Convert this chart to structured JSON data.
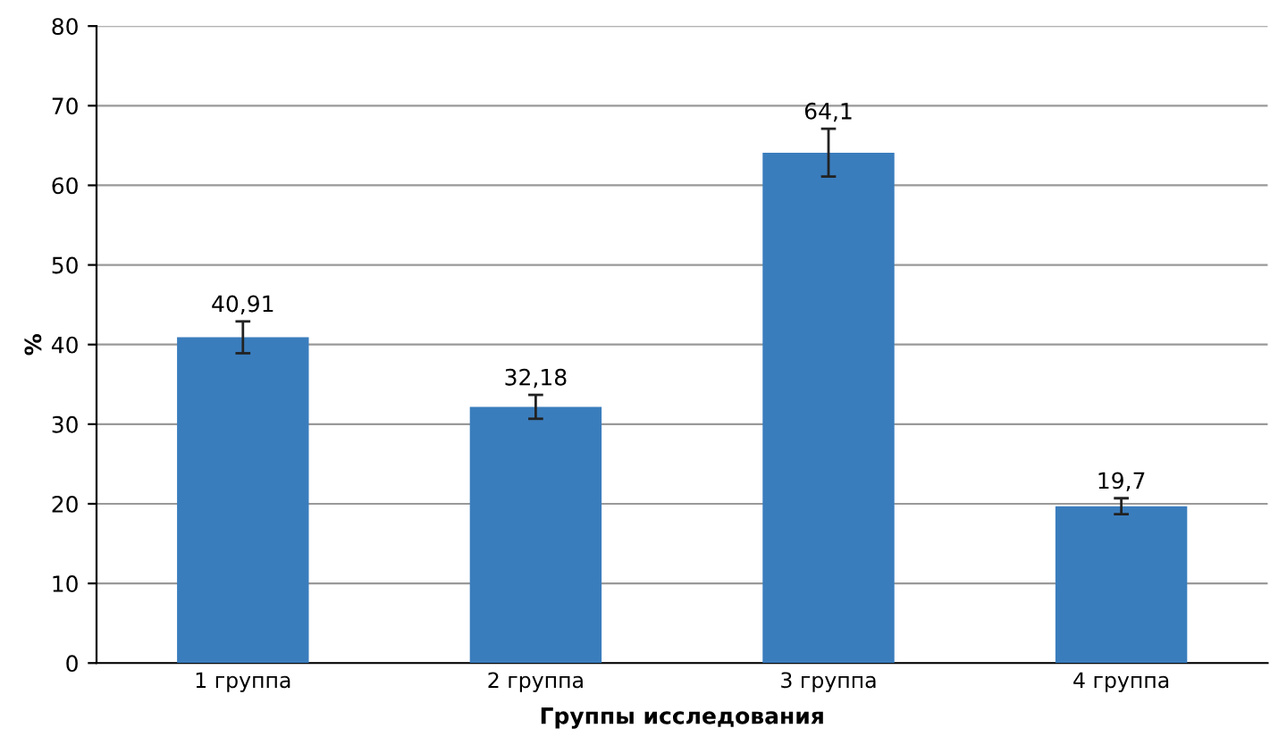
{
  "chart_data": {
    "type": "bar",
    "ylabel": "%",
    "xlabel": "Группы исследования",
    "categories": [
      "1 группа",
      "2 группа",
      "3 группа",
      "4 группа"
    ],
    "values": [
      40.91,
      32.18,
      64.1,
      19.7
    ],
    "errors": [
      2,
      1.5,
      3,
      1
    ],
    "value_labels": [
      "40,91",
      "32,18",
      "64,1",
      "19,7"
    ],
    "color": "#3a7dbd",
    "ylim": [
      0,
      80
    ],
    "yticks": [
      0,
      10,
      20,
      30,
      40,
      50,
      60,
      70,
      80
    ],
    "grid": "y"
  }
}
